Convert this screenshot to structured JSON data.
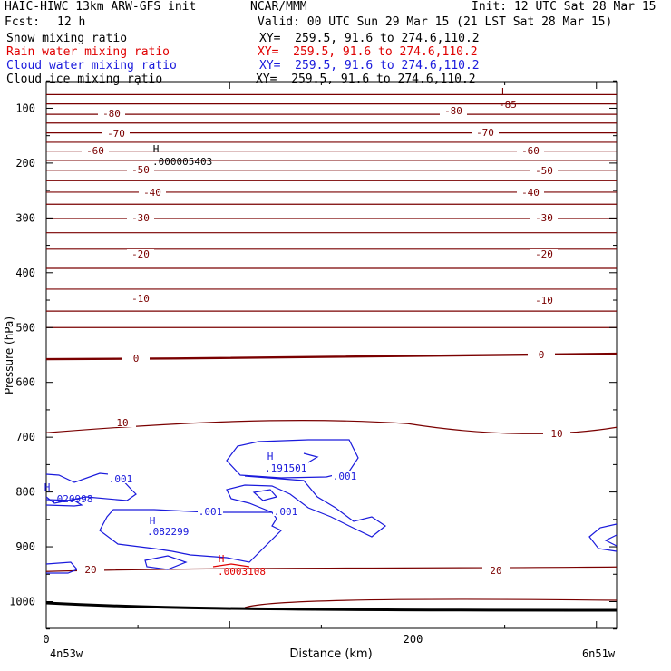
{
  "header": {
    "model": "HAIC-HIWC 13km ARW-GFS init",
    "org": "NCAR/MMM",
    "init": "Init: 12 UTC Sat 28 Mar 15",
    "fcst_label": "Fcst:",
    "fcst_value": "12 h",
    "valid": "Valid: 00 UTC Sun 29 Mar 15 (21 LST Sat 28 Mar 15)"
  },
  "fields": [
    {
      "name": "Snow mixing ratio",
      "xy": "XY=  259.5, 91.6 to 274.6,110.2",
      "color": "#000000"
    },
    {
      "name": "Rain water mixing ratio",
      "xy": "XY=  259.5, 91.6 to 274.6,110.2",
      "color": "#e00000"
    },
    {
      "name": "Cloud water mixing ratio",
      "xy": "XY=  259.5, 91.6 to 274.6,110.2",
      "color": "#1a1adc"
    },
    {
      "name": "Cloud ice mixing ratio",
      "xy": "XY=  259.5, 91.6 to 274.6,110.2",
      "color": "#000000"
    }
  ],
  "chart_data": {
    "type": "line",
    "xlabel": "Distance (km)",
    "ylabel": "Pressure (hPa)",
    "xlim": [
      0,
      311
    ],
    "ylim": [
      1050,
      50
    ],
    "x_ticks": [
      "0",
      "200"
    ],
    "x_tick_values": [
      0,
      200
    ],
    "y_ticks": [
      "100",
      "200",
      "300",
      "400",
      "500",
      "600",
      "700",
      "800",
      "900",
      "1000"
    ],
    "y_tick_values": [
      100,
      200,
      300,
      400,
      500,
      600,
      700,
      800,
      900,
      1000
    ],
    "left_endpoint": "4n53w",
    "right_endpoint": "6n51w",
    "temperature_contours": [
      {
        "label": "-85",
        "p": 78
      },
      {
        "label": "-80",
        "p": 111
      },
      {
        "label": "-70",
        "p": 145
      },
      {
        "label": "-60",
        "p": 178
      },
      {
        "label": "-50",
        "p": 213
      },
      {
        "label": "-40",
        "p": 253
      },
      {
        "label": "-30",
        "p": 301
      },
      {
        "label": "-20",
        "p": 357
      },
      {
        "label": "-10",
        "p": 430
      },
      {
        "label": "0",
        "p": 556
      },
      {
        "label": "10",
        "p": 682
      },
      {
        "label": "20",
        "p": 940
      }
    ],
    "highs_lows": [
      {
        "mark": "L",
        "value": "-85",
        "x": 252,
        "p": 70,
        "color": "#7a0000"
      },
      {
        "mark": "H",
        "value": ".000005403",
        "x": 60,
        "p": 187,
        "color": "#000000"
      },
      {
        "mark": "H",
        "value": ".191501",
        "x": 122,
        "p": 738,
        "color": "#1a1adc"
      },
      {
        "mark": "H",
        "value": ".020998",
        "x": 1,
        "p": 810,
        "color": "#1a1adc"
      },
      {
        "mark": "H",
        "value": ".082299",
        "x": 57,
        "p": 872,
        "color": "#1a1adc"
      },
      {
        "mark": "H",
        "value": ".0003108",
        "x": 95,
        "p": 922,
        "color": "#e00000"
      }
    ],
    "cloud_water_labels": [
      {
        "label": ".001",
        "x": 40,
        "p": 780
      },
      {
        "label": ".001",
        "x": 159,
        "p": 776
      },
      {
        "label": ".001",
        "x": 87,
        "p": 836
      },
      {
        "label": ".001",
        "x": 130,
        "p": 837
      }
    ]
  }
}
